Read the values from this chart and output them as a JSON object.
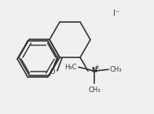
{
  "bg_color": "#f0f0f0",
  "line_color": "#333333",
  "text_color": "#333333",
  "lw": 1.2,
  "iodide_label": "I⁻",
  "n_label": "N",
  "plus_label": "±",
  "ch3_labels": [
    "H₃C",
    "CH₃",
    "CH₃"
  ],
  "o_label": "O"
}
